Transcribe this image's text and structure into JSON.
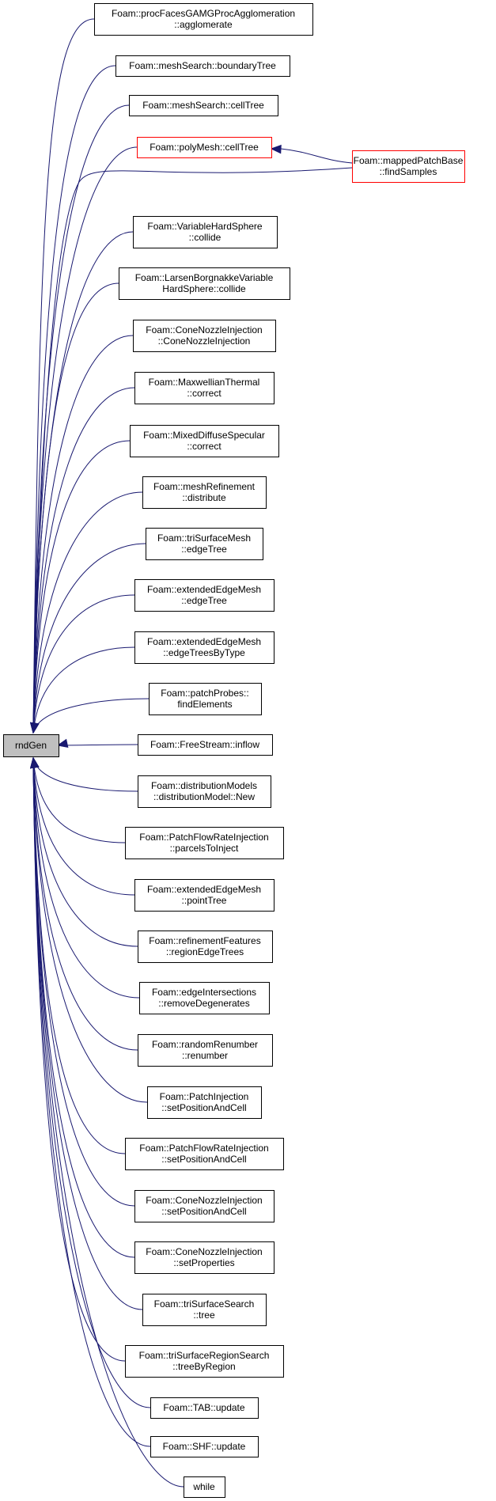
{
  "graph": {
    "root": {
      "id": "root",
      "lines": [
        "rndGen"
      ]
    },
    "nodes": [
      {
        "id": "n1",
        "lines": [
          "Foam::procFacesGAMGProcAgglomeration",
          "::agglomerate"
        ]
      },
      {
        "id": "n2",
        "lines": [
          "Foam::meshSearch::boundaryTree"
        ]
      },
      {
        "id": "n3",
        "lines": [
          "Foam::meshSearch::cellTree"
        ]
      },
      {
        "id": "n4",
        "lines": [
          "Foam::polyMesh::cellTree"
        ],
        "border": "red"
      },
      {
        "id": "n5",
        "lines": [
          "Foam::mappedPatchBase",
          "::findSamples"
        ],
        "border": "red"
      },
      {
        "id": "n6",
        "lines": [
          "Foam::VariableHardSphere",
          "::collide"
        ]
      },
      {
        "id": "n7",
        "lines": [
          "Foam::LarsenBorgnakkeVariable",
          "HardSphere::collide"
        ]
      },
      {
        "id": "n8",
        "lines": [
          "Foam::ConeNozzleInjection",
          "::ConeNozzleInjection"
        ]
      },
      {
        "id": "n9",
        "lines": [
          "Foam::MaxwellianThermal",
          "::correct"
        ]
      },
      {
        "id": "n10",
        "lines": [
          "Foam::MixedDiffuseSpecular",
          "::correct"
        ]
      },
      {
        "id": "n11",
        "lines": [
          "Foam::meshRefinement",
          "::distribute"
        ]
      },
      {
        "id": "n12",
        "lines": [
          "Foam::triSurfaceMesh",
          "::edgeTree"
        ]
      },
      {
        "id": "n13",
        "lines": [
          "Foam::extendedEdgeMesh",
          "::edgeTree"
        ]
      },
      {
        "id": "n14",
        "lines": [
          "Foam::extendedEdgeMesh",
          "::edgeTreesByType"
        ]
      },
      {
        "id": "n15",
        "lines": [
          "Foam::patchProbes::",
          "findElements"
        ]
      },
      {
        "id": "n16",
        "lines": [
          "Foam::FreeStream::inflow"
        ]
      },
      {
        "id": "n17",
        "lines": [
          "Foam::distributionModels",
          "::distributionModel::New"
        ]
      },
      {
        "id": "n18",
        "lines": [
          "Foam::PatchFlowRateInjection",
          "::parcelsToInject"
        ]
      },
      {
        "id": "n19",
        "lines": [
          "Foam::extendedEdgeMesh",
          "::pointTree"
        ]
      },
      {
        "id": "n20",
        "lines": [
          "Foam::refinementFeatures",
          "::regionEdgeTrees"
        ]
      },
      {
        "id": "n21",
        "lines": [
          "Foam::edgeIntersections",
          "::removeDegenerates"
        ]
      },
      {
        "id": "n22",
        "lines": [
          "Foam::randomRenumber",
          "::renumber"
        ]
      },
      {
        "id": "n23",
        "lines": [
          "Foam::PatchInjection",
          "::setPositionAndCell"
        ]
      },
      {
        "id": "n24",
        "lines": [
          "Foam::PatchFlowRateInjection",
          "::setPositionAndCell"
        ]
      },
      {
        "id": "n25",
        "lines": [
          "Foam::ConeNozzleInjection",
          "::setPositionAndCell"
        ]
      },
      {
        "id": "n26",
        "lines": [
          "Foam::ConeNozzleInjection",
          "::setProperties"
        ]
      },
      {
        "id": "n27",
        "lines": [
          "Foam::triSurfaceSearch",
          "::tree"
        ]
      },
      {
        "id": "n28",
        "lines": [
          "Foam::triSurfaceRegionSearch",
          "::treeByRegion"
        ]
      },
      {
        "id": "n29",
        "lines": [
          "Foam::TAB::update"
        ]
      },
      {
        "id": "n30",
        "lines": [
          "Foam::SHF::update"
        ]
      },
      {
        "id": "n31",
        "lines": [
          "while"
        ]
      }
    ],
    "edges": [
      {
        "from": "n1",
        "to": "root"
      },
      {
        "from": "n2",
        "to": "root"
      },
      {
        "from": "n3",
        "to": "root"
      },
      {
        "from": "n4",
        "to": "root"
      },
      {
        "from": "n5",
        "to": "n4"
      },
      {
        "from": "n5",
        "to": "root"
      },
      {
        "from": "n6",
        "to": "root"
      },
      {
        "from": "n7",
        "to": "root"
      },
      {
        "from": "n8",
        "to": "root"
      },
      {
        "from": "n9",
        "to": "root"
      },
      {
        "from": "n10",
        "to": "root"
      },
      {
        "from": "n11",
        "to": "root"
      },
      {
        "from": "n12",
        "to": "root"
      },
      {
        "from": "n13",
        "to": "root"
      },
      {
        "from": "n14",
        "to": "root"
      },
      {
        "from": "n15",
        "to": "root"
      },
      {
        "from": "n16",
        "to": "root"
      },
      {
        "from": "n17",
        "to": "root"
      },
      {
        "from": "n18",
        "to": "root"
      },
      {
        "from": "n19",
        "to": "root"
      },
      {
        "from": "n20",
        "to": "root"
      },
      {
        "from": "n21",
        "to": "root"
      },
      {
        "from": "n22",
        "to": "root"
      },
      {
        "from": "n23",
        "to": "root"
      },
      {
        "from": "n24",
        "to": "root"
      },
      {
        "from": "n25",
        "to": "root"
      },
      {
        "from": "n26",
        "to": "root"
      },
      {
        "from": "n27",
        "to": "root"
      },
      {
        "from": "n28",
        "to": "root"
      },
      {
        "from": "n29",
        "to": "root"
      },
      {
        "from": "n30",
        "to": "root"
      },
      {
        "from": "n31",
        "to": "root"
      }
    ],
    "colors": {
      "edge": "#191970",
      "node_border": "#000000",
      "highlight_border": "#ff0000",
      "root_fill": "#bfbfbf"
    }
  }
}
